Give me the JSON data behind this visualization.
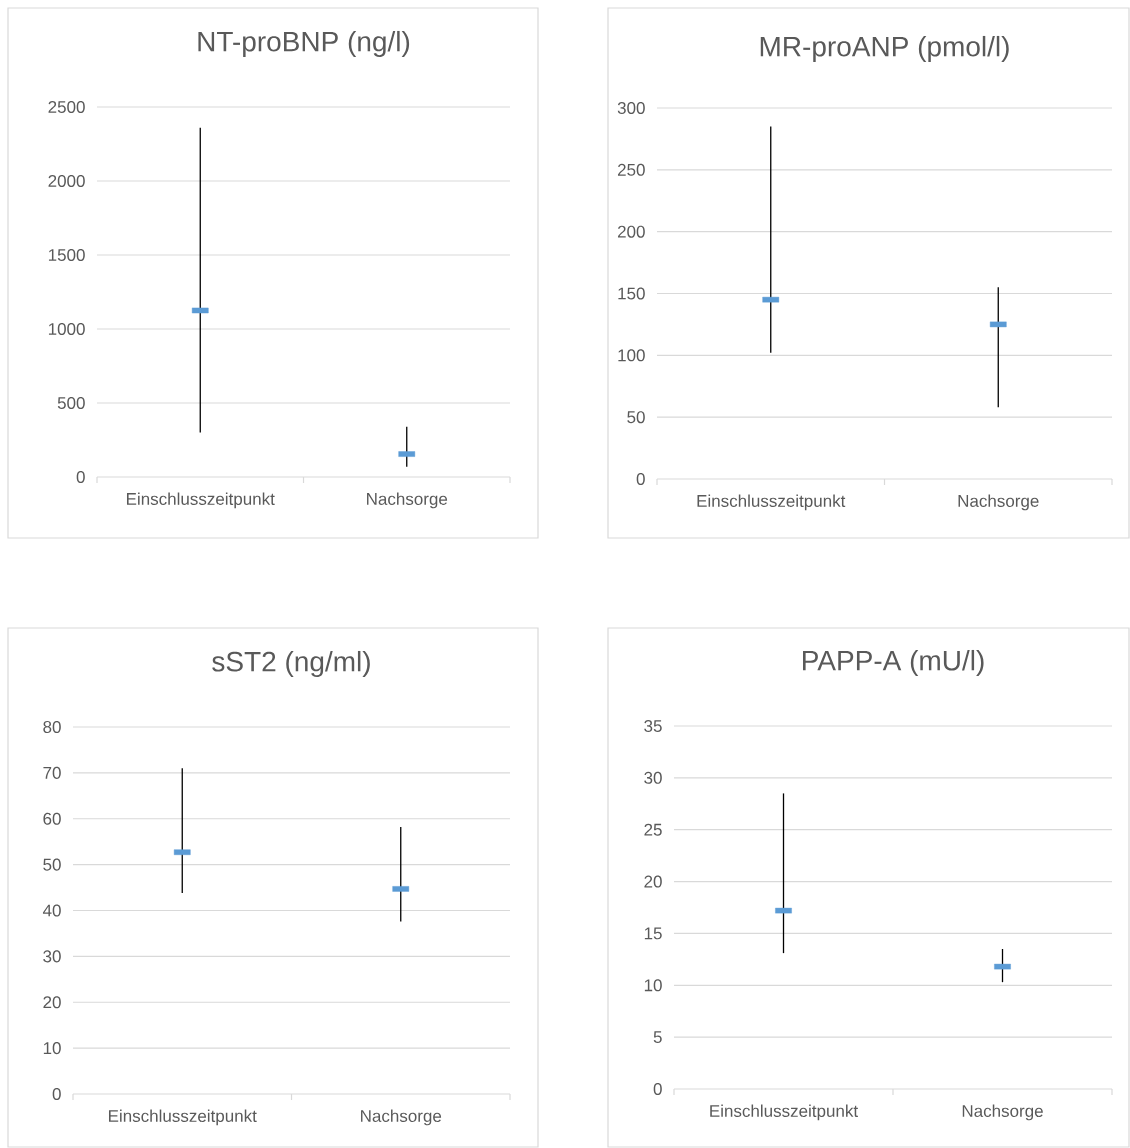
{
  "chart_data": [
    {
      "type": "scatter",
      "title": "NT-proBNP (ng/l)",
      "categories": [
        "Einschlusszeitpunkt",
        "Nachsorge"
      ],
      "values": [
        1125,
        155
      ],
      "errors": [
        [
          300,
          2360
        ],
        [
          70,
          340
        ]
      ],
      "color": "#5b9bd5",
      "marker": "square",
      "ylim": [
        0,
        2500
      ],
      "yticks": [
        0,
        500,
        1000,
        1500,
        2000,
        2500
      ],
      "grid": "y"
    },
    {
      "type": "scatter",
      "title": "MR-proANP (pmol/l)",
      "categories": [
        "Einschlusszeitpunkt",
        "Nachsorge"
      ],
      "values": [
        145,
        125
      ],
      "errors": [
        [
          102,
          285
        ],
        [
          58,
          155
        ]
      ],
      "color": "#5b9bd5",
      "marker": "square",
      "ylim": [
        0,
        300
      ],
      "yticks": [
        0,
        50,
        100,
        150,
        200,
        250,
        300
      ],
      "grid": "y"
    },
    {
      "type": "scatter",
      "title": "sST2 (ng/ml)",
      "categories": [
        "Einschlusszeitpunkt",
        "Nachsorge"
      ],
      "values": [
        52.7,
        44.7
      ],
      "errors": [
        [
          43.8,
          71
        ],
        [
          37.6,
          58.2
        ]
      ],
      "color": "#5b9bd5",
      "marker": "square",
      "ylim": [
        0,
        80
      ],
      "yticks": [
        0,
        10,
        20,
        30,
        40,
        50,
        60,
        70,
        80
      ],
      "grid": "y"
    },
    {
      "type": "scatter",
      "title": "PAPP-A (mU/l)",
      "categories": [
        "Einschlusszeitpunkt",
        "Nachsorge"
      ],
      "values": [
        17.2,
        11.8
      ],
      "errors": [
        [
          13.1,
          28.5
        ],
        [
          10.3,
          13.5
        ]
      ],
      "color": "#5b9bd5",
      "marker": "square",
      "ylim": [
        0,
        35
      ],
      "yticks": [
        0,
        5,
        10,
        15,
        20,
        25,
        30,
        35
      ],
      "grid": "y"
    }
  ]
}
